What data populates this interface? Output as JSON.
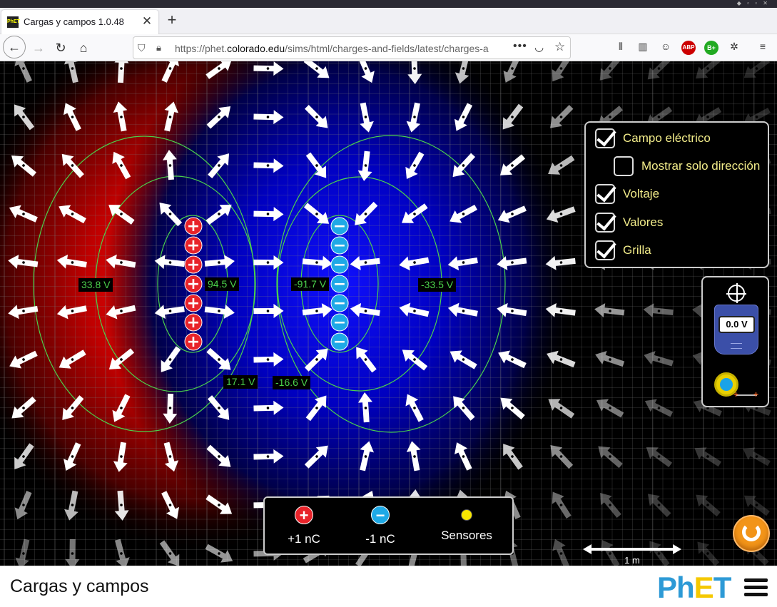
{
  "browser": {
    "tab_title": "Cargas y campos 1.0.48",
    "favicon_text": "PhET",
    "url_prefix": "https://phet.",
    "url_domain": "colorado.edu",
    "url_path": "/sims/html/charges-and-fields/latest/charges-and-fi",
    "close_glyph": "✕",
    "newtab_glyph": "+",
    "more_glyph": "•••"
  },
  "controls": {
    "electric_field": {
      "label": "Campo eléctrico",
      "checked": true
    },
    "direction_only": {
      "label": "Mostrar solo dirección",
      "checked": false
    },
    "voltage": {
      "label": "Voltaje",
      "checked": true
    },
    "values": {
      "label": "Valores",
      "checked": true
    },
    "grid": {
      "label": "Grilla",
      "checked": true
    }
  },
  "voltmeter": {
    "reading": "0.0 V"
  },
  "equipotential_labels": [
    {
      "id": "v1",
      "text": "33.8 V"
    },
    {
      "id": "v2",
      "text": "94.5 V"
    },
    {
      "id": "v3",
      "text": "-91.7 V"
    },
    {
      "id": "v4",
      "text": "-33.5 V"
    },
    {
      "id": "v5",
      "text": "17.1 V"
    },
    {
      "id": "v6",
      "text": "-16.6 V"
    }
  ],
  "charges": {
    "positive_count": 7,
    "negative_count": 7,
    "positive_glyph": "+",
    "negative_glyph": "−"
  },
  "toolbox": {
    "positive_label": "+1 nC",
    "negative_label": "-1 nC",
    "sensors_label": "Sensores"
  },
  "scale": {
    "label": "1 m"
  },
  "footer": {
    "sim_title": "Cargas y campos",
    "logo_text": "PhET"
  },
  "colors": {
    "positive": "#e8232a",
    "negative": "#1ea9e6",
    "label_text": "#f2ec8a",
    "equipotential": "#4bd14b",
    "reset": "#f29418"
  }
}
